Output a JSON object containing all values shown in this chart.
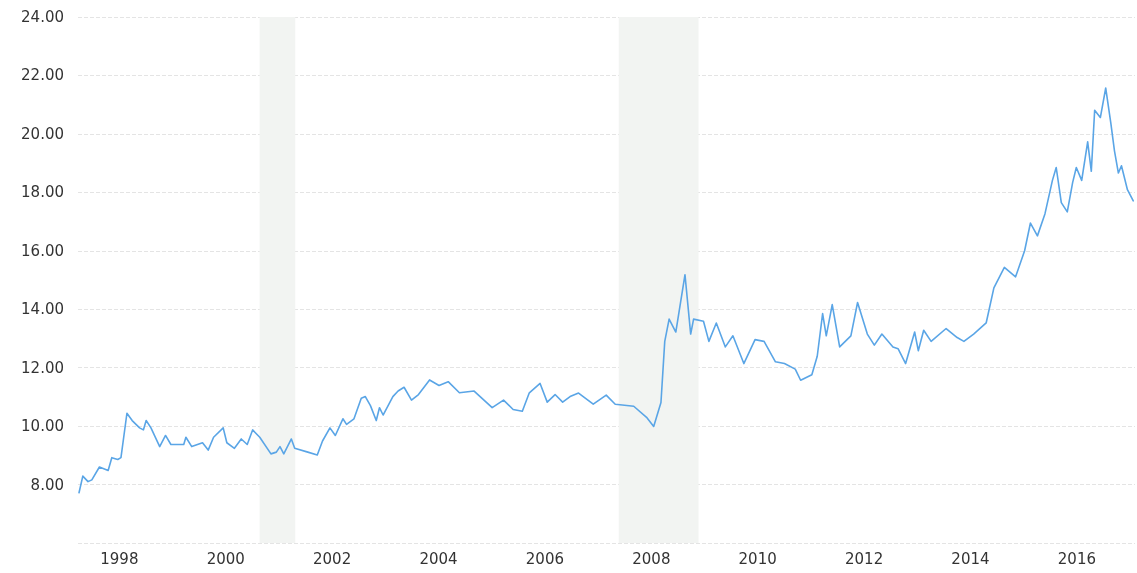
{
  "chart_data": {
    "type": "line",
    "x": [
      "1997-10-08",
      "1997-11-03",
      "1997-12-09",
      "1998-01-04",
      "1998-02-25",
      "1998-04-26",
      "1998-05-21",
      "1998-07-01",
      "1998-07-23",
      "1998-09-02",
      "1998-10-08",
      "1998-11-28",
      "1998-12-24",
      "1999-01-12",
      "1999-02-14",
      "1999-04-15",
      "1999-05-25",
      "1999-07-01",
      "1999-09-27",
      "1999-10-12",
      "1999-11-21",
      "2000-02-03",
      "2000-03-13",
      "2000-04-19",
      "2000-06-24",
      "2000-07-19",
      "2000-09-09",
      "2000-10-26",
      "2000-12-06",
      "2001-01-12",
      "2001-03-02",
      "2001-05-18",
      "2001-06-24",
      "2001-07-19",
      "2001-08-14",
      "2001-10-05",
      "2001-10-28",
      "2002-01-26",
      "2002-04-01",
      "2002-05-07",
      "2002-06-27",
      "2002-08-03",
      "2002-09-24",
      "2002-10-19",
      "2002-12-09",
      "2003-01-28",
      "2003-02-25",
      "2003-04-01",
      "2003-05-11",
      "2003-06-02",
      "2003-06-27",
      "2003-09-02",
      "2003-10-08",
      "2003-11-18",
      "2004-01-08",
      "2004-02-25",
      "2004-05-11",
      "2004-07-15",
      "2004-09-16",
      "2004-12-02",
      "2005-03-13",
      "2005-07-15",
      "2005-10-01",
      "2005-12-06",
      "2006-02-07",
      "2006-03-27",
      "2006-06-09",
      "2006-07-28",
      "2006-09-20",
      "2006-11-11",
      "2007-01-01",
      "2007-02-28",
      "2007-06-09",
      "2007-09-06",
      "2007-11-07",
      "2008-03-13",
      "2008-06-09",
      "2008-07-28",
      "2008-09-16",
      "2008-10-12",
      "2008-11-11",
      "2008-12-27",
      "2009-02-28",
      "2009-04-08",
      "2009-04-28",
      "2009-07-05",
      "2009-08-11",
      "2009-10-01",
      "2009-12-02",
      "2010-01-23",
      "2010-04-08",
      "2010-06-24",
      "2010-08-25",
      "2010-11-11",
      "2011-01-12",
      "2011-03-27",
      "2011-05-03",
      "2011-07-19",
      "2011-08-25",
      "2011-10-01",
      "2011-10-26",
      "2011-12-06",
      "2012-01-26",
      "2012-04-12",
      "2012-05-28",
      "2012-08-03",
      "2012-09-20",
      "2012-11-11",
      "2013-01-26",
      "2013-03-02",
      "2013-04-23",
      "2013-06-24",
      "2013-07-19",
      "2013-08-25",
      "2013-10-15",
      "2014-01-26",
      "2014-04-12",
      "2014-05-28",
      "2014-08-03",
      "2014-10-28",
      "2014-12-20",
      "2015-03-02",
      "2015-05-18",
      "2015-07-19",
      "2015-08-28",
      "2015-10-15",
      "2015-12-06",
      "2016-01-26",
      "2016-02-21",
      "2016-03-27",
      "2016-05-07",
      "2016-06-13",
      "2016-07-08",
      "2016-08-14",
      "2016-09-24",
      "2016-10-19",
      "2016-11-11",
      "2016-12-20",
      "2017-01-26",
      "2017-03-02",
      "2017-03-27",
      "2017-04-23",
      "2017-05-14",
      "2017-06-24",
      "2017-08-03"
    ],
    "series": [
      {
        "color": "#5aa5e6",
        "values": [
          7.72,
          8.29,
          8.1,
          8.16,
          8.6,
          8.48,
          8.92,
          8.86,
          8.92,
          10.44,
          10.19,
          9.94,
          9.87,
          10.19,
          9.94,
          9.3,
          9.68,
          9.37,
          9.37,
          9.62,
          9.3,
          9.43,
          9.18,
          9.62,
          9.94,
          9.43,
          9.24,
          9.56,
          9.37,
          9.87,
          9.62,
          9.05,
          9.11,
          9.3,
          9.05,
          9.56,
          9.24,
          9.11,
          9.01,
          9.49,
          9.94,
          9.68,
          10.25,
          10.06,
          10.25,
          10.95,
          11.01,
          10.7,
          10.19,
          10.63,
          10.38,
          11.01,
          11.2,
          11.33,
          10.89,
          11.08,
          11.58,
          11.39,
          11.52,
          11.14,
          11.2,
          10.63,
          10.89,
          10.57,
          10.51,
          11.14,
          11.46,
          10.82,
          11.08,
          10.82,
          11.01,
          11.13,
          10.75,
          11.06,
          10.75,
          10.68,
          10.3,
          9.99,
          10.81,
          12.9,
          13.66,
          13.22,
          15.18,
          13.15,
          13.66,
          13.59,
          12.9,
          13.53,
          12.71,
          13.09,
          12.14,
          12.96,
          12.9,
          12.2,
          12.14,
          11.95,
          11.57,
          11.76,
          12.39,
          13.85,
          13.09,
          14.16,
          12.71,
          13.09,
          14.23,
          13.15,
          12.77,
          13.15,
          12.71,
          12.65,
          12.14,
          13.22,
          12.58,
          13.28,
          12.9,
          13.34,
          13.03,
          12.9,
          13.15,
          13.53,
          14.73,
          15.43,
          15.11,
          16.0,
          16.95,
          16.51,
          17.27,
          18.41,
          18.85,
          17.65,
          17.33,
          18.34,
          18.85,
          18.41,
          19.73,
          18.72,
          20.81,
          20.56,
          21.57,
          20.37,
          19.42,
          18.66,
          18.91,
          18.09,
          17.71
        ]
      }
    ],
    "xlim": [
      "1997-10-01",
      "2017-08-15"
    ],
    "xticks": [
      {
        "value": "1998-07-12",
        "label": "1998"
      },
      {
        "value": "2000-07-12",
        "label": "2000"
      },
      {
        "value": "2002-07-12",
        "label": "2002"
      },
      {
        "value": "2004-07-12",
        "label": "2004"
      },
      {
        "value": "2006-07-12",
        "label": "2006"
      },
      {
        "value": "2008-07-12",
        "label": "2008"
      },
      {
        "value": "2010-07-12",
        "label": "2010"
      },
      {
        "value": "2012-07-12",
        "label": "2012"
      },
      {
        "value": "2014-07-12",
        "label": "2014"
      },
      {
        "value": "2016-07-12",
        "label": "2016"
      }
    ],
    "ylim": [
      6,
      24
    ],
    "yticks": [
      {
        "value": 6,
        "label": null
      },
      {
        "value": 8,
        "label": "8.00"
      },
      {
        "value": 10,
        "label": "10.00"
      },
      {
        "value": 12,
        "label": "12.00"
      },
      {
        "value": 14,
        "label": "14.00"
      },
      {
        "value": 16,
        "label": "16.00"
      },
      {
        "value": 18,
        "label": "18.00"
      },
      {
        "value": 20,
        "label": "20.00"
      },
      {
        "value": 22,
        "label": "22.00"
      },
      {
        "value": 24,
        "label": "24.00"
      }
    ],
    "bands": [
      {
        "axis": "x",
        "from": "2001-03-01",
        "to": "2001-11-01",
        "color": "#f2f4f2"
      },
      {
        "axis": "x",
        "from": "2007-12-01",
        "to": "2009-06-01",
        "color": "#f2f4f2"
      }
    ],
    "grid": "y",
    "line_style": "solid",
    "marker": "none"
  }
}
